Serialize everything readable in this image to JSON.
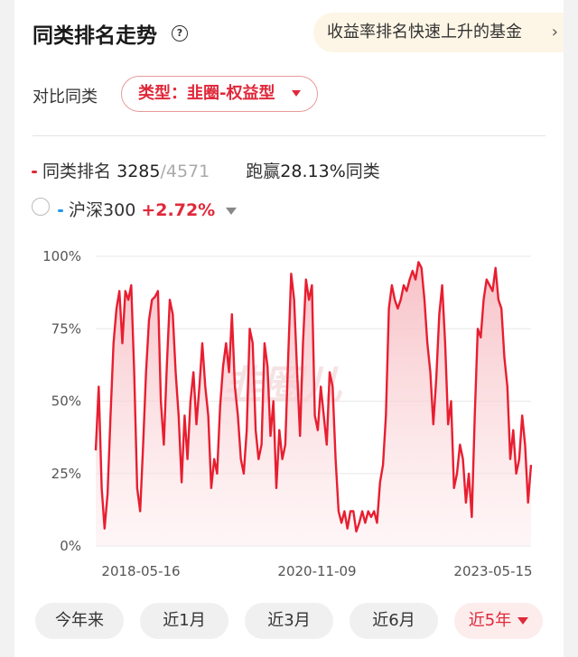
{
  "header": {
    "title": "同类排名走势",
    "help_icon": "question-circle-icon",
    "promo_text": "收益率排名快速上升的基金",
    "promo_chevron": "›"
  },
  "compare": {
    "label": "对比同类",
    "type_value": "类型：韭圈-权益型"
  },
  "legend": {
    "rank_label": "同类排名",
    "rank_value": "3285",
    "rank_total": "/4571",
    "beat_label": "跑赢",
    "beat_value": "28.13%",
    "beat_suffix": "同类",
    "benchmark_name": "沪深300",
    "benchmark_change": "+2.72%"
  },
  "colors": {
    "accent": "#e0283a",
    "benchmark": "#2196f3",
    "pill_bg": "#fdecec",
    "promo_bg": "#fdf6e6"
  },
  "watermark": "韭圈儿",
  "chart_data": {
    "type": "area",
    "y_tick_labels": [
      "100%",
      "75%",
      "50%",
      "25%",
      "0%"
    ],
    "x_tick_labels": [
      "2018-05-16",
      "2020-11-09",
      "2023-05-15"
    ],
    "ylim": [
      0,
      100
    ],
    "x_range": [
      "2018-05-16",
      "2023-05-15"
    ],
    "grid": true,
    "series": [
      {
        "values": [
          33,
          55,
          20,
          6,
          18,
          45,
          70,
          82,
          88,
          70,
          88,
          85,
          90,
          60,
          20,
          12,
          35,
          60,
          78,
          85,
          86,
          88,
          50,
          35,
          62,
          85,
          80,
          60,
          45,
          22,
          45,
          30,
          50,
          60,
          42,
          55,
          70,
          55,
          45,
          20,
          30,
          25,
          48,
          62,
          70,
          60,
          80,
          55,
          45,
          30,
          25,
          40,
          75,
          70,
          40,
          30,
          35,
          70,
          62,
          38,
          50,
          20,
          40,
          30,
          35,
          65,
          94,
          85,
          60,
          38,
          70,
          92,
          85,
          90,
          45,
          40,
          55,
          45,
          35,
          60,
          55,
          30,
          12,
          8,
          12,
          6,
          12,
          12,
          5,
          8,
          12,
          8,
          12,
          10,
          12,
          8,
          22,
          28,
          45,
          82,
          90,
          85,
          82,
          85,
          90,
          88,
          92,
          95,
          92,
          98,
          96,
          85,
          70,
          60,
          42,
          58,
          80,
          90,
          70,
          42,
          50,
          20,
          25,
          35,
          30,
          15,
          25,
          10,
          45,
          75,
          72,
          85,
          92,
          90,
          88,
          96,
          85,
          82,
          65,
          55,
          30,
          40,
          25,
          30,
          45,
          35,
          15,
          28
        ]
      }
    ]
  },
  "range_buttons": [
    {
      "label": "今年来",
      "active": false
    },
    {
      "label": "近1月",
      "active": false
    },
    {
      "label": "近3月",
      "active": false
    },
    {
      "label": "近6月",
      "active": false
    },
    {
      "label": "近5年",
      "active": true
    }
  ]
}
